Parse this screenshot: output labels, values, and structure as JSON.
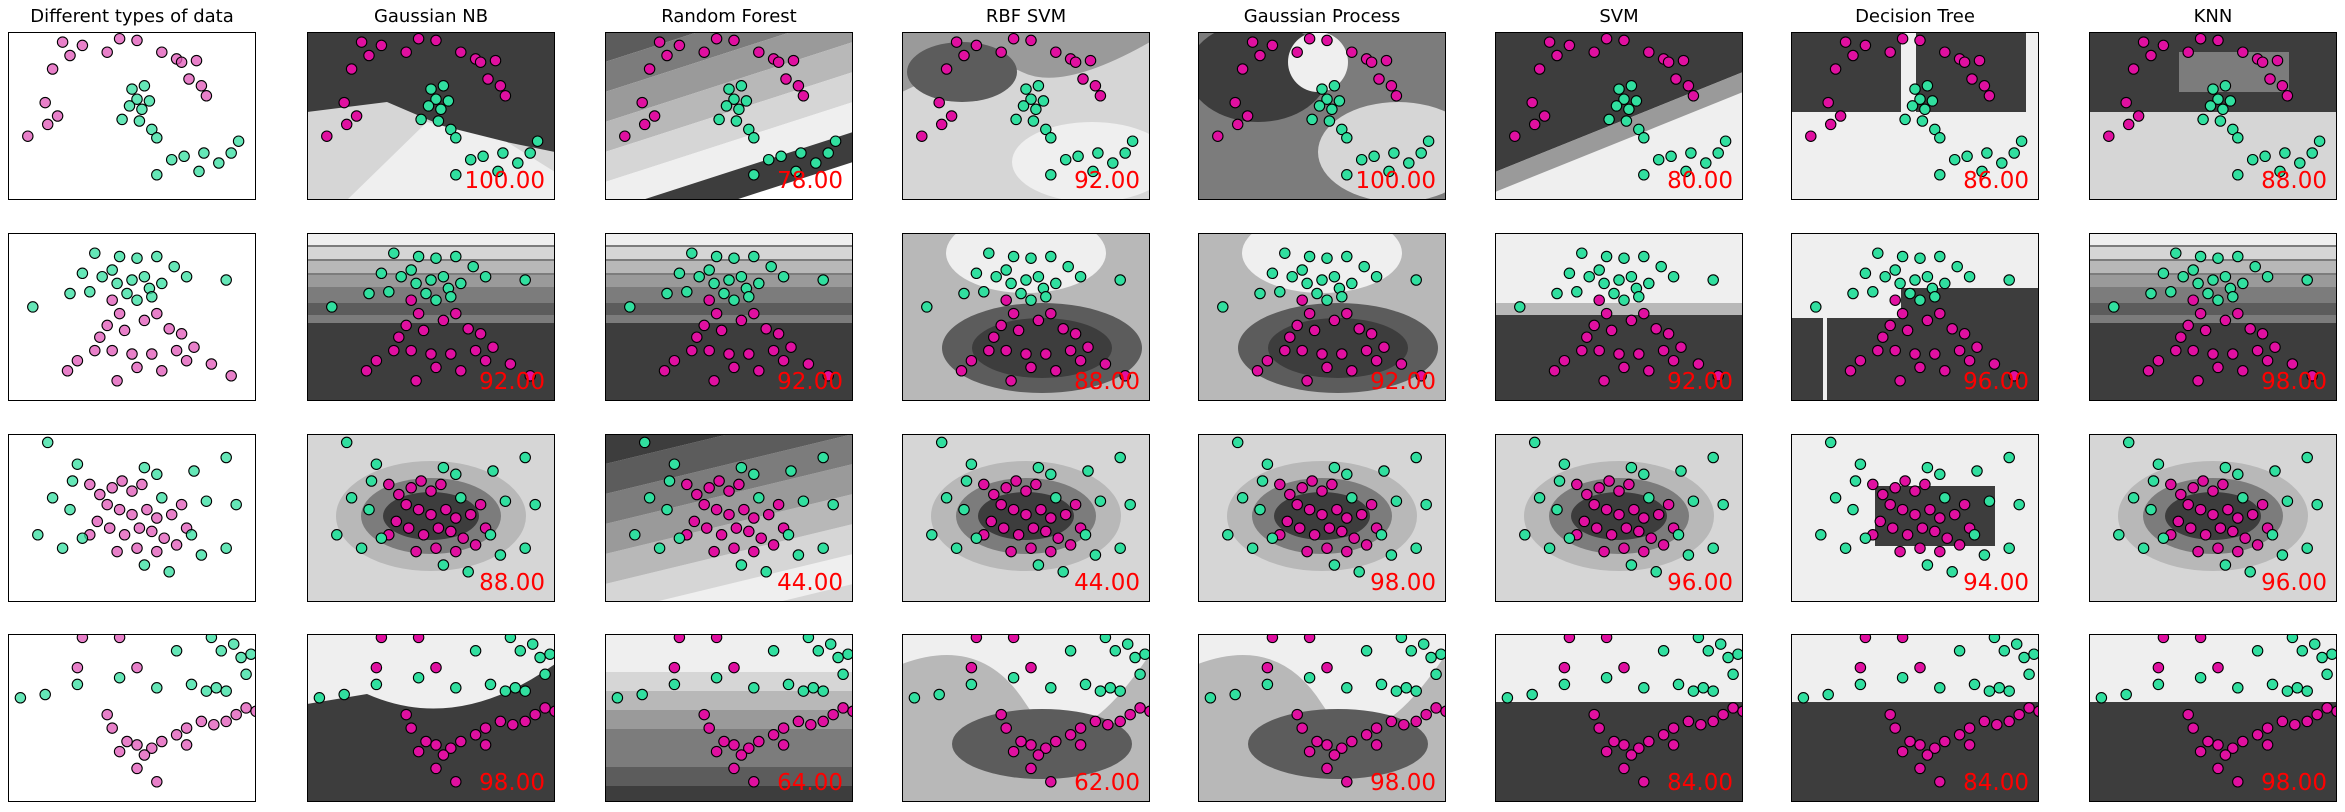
{
  "chart_data": {
    "type": "scatter",
    "title": "",
    "columns": [
      "Different types of data",
      "Gaussian NB",
      "Random Forest",
      "RBF SVM",
      "Gaussian Process",
      "SVM",
      "Decision Tree",
      "KNN"
    ],
    "rows": [
      {
        "dataset": "blobs",
        "scores": [
          "100.00",
          "78.00",
          "92.00",
          "100.00",
          "80.00",
          "86.00",
          "88.00"
        ],
        "class_colors": [
          "#e055b7",
          "#31df9f"
        ],
        "points": {
          "magenta": [
            [
              0.22,
              0.06
            ],
            [
              0.25,
              0.14
            ],
            [
              0.3,
              0.08
            ],
            [
              0.4,
              0.12
            ],
            [
              0.18,
              0.22
            ],
            [
              0.52,
              0.05
            ],
            [
              0.68,
              0.16
            ],
            [
              0.7,
              0.18
            ],
            [
              0.76,
              0.17
            ],
            [
              0.78,
              0.32
            ],
            [
              0.8,
              0.38
            ],
            [
              0.62,
              0.12
            ],
            [
              0.15,
              0.42
            ],
            [
              0.2,
              0.5
            ],
            [
              0.16,
              0.55
            ],
            [
              0.08,
              0.62
            ],
            [
              0.45,
              0.04
            ],
            [
              0.73,
              0.28
            ]
          ],
          "green": [
            [
              0.5,
              0.34
            ],
            [
              0.55,
              0.32
            ],
            [
              0.52,
              0.4
            ],
            [
              0.49,
              0.44
            ],
            [
              0.54,
              0.46
            ],
            [
              0.57,
              0.41
            ],
            [
              0.53,
              0.53
            ],
            [
              0.58,
              0.58
            ],
            [
              0.6,
              0.63
            ],
            [
              0.66,
              0.76
            ],
            [
              0.71,
              0.74
            ],
            [
              0.79,
              0.72
            ],
            [
              0.77,
              0.83
            ],
            [
              0.85,
              0.78
            ],
            [
              0.9,
              0.72
            ],
            [
              0.93,
              0.65
            ],
            [
              0.6,
              0.85
            ],
            [
              0.46,
              0.52
            ]
          ]
        }
      },
      {
        "dataset": "two_bands",
        "scores": [
          "92.00",
          "92.00",
          "88.00",
          "92.00",
          "92.00",
          "96.00",
          "98.00"
        ],
        "class_colors": [
          "#e055b7",
          "#31df9f"
        ],
        "points": {
          "magenta": [
            [
              0.42,
              0.4
            ],
            [
              0.45,
              0.48
            ],
            [
              0.4,
              0.55
            ],
            [
              0.47,
              0.58
            ],
            [
              0.55,
              0.52
            ],
            [
              0.6,
              0.48
            ],
            [
              0.65,
              0.57
            ],
            [
              0.7,
              0.6
            ],
            [
              0.75,
              0.68
            ],
            [
              0.68,
              0.7
            ],
            [
              0.58,
              0.72
            ],
            [
              0.5,
              0.72
            ],
            [
              0.42,
              0.7
            ],
            [
              0.35,
              0.7
            ],
            [
              0.28,
              0.76
            ],
            [
              0.24,
              0.82
            ],
            [
              0.44,
              0.88
            ],
            [
              0.52,
              0.8
            ],
            [
              0.62,
              0.82
            ],
            [
              0.72,
              0.76
            ],
            [
              0.82,
              0.78
            ],
            [
              0.9,
              0.85
            ],
            [
              0.37,
              0.62
            ]
          ],
          "green": [
            [
              0.35,
              0.12
            ],
            [
              0.45,
              0.14
            ],
            [
              0.52,
              0.15
            ],
            [
              0.6,
              0.14
            ],
            [
              0.3,
              0.24
            ],
            [
              0.38,
              0.26
            ],
            [
              0.44,
              0.3
            ],
            [
              0.5,
              0.28
            ],
            [
              0.55,
              0.26
            ],
            [
              0.57,
              0.33
            ],
            [
              0.48,
              0.36
            ],
            [
              0.42,
              0.22
            ],
            [
              0.67,
              0.2
            ],
            [
              0.72,
              0.26
            ],
            [
              0.88,
              0.28
            ],
            [
              0.1,
              0.44
            ],
            [
              0.25,
              0.36
            ],
            [
              0.33,
              0.35
            ],
            [
              0.62,
              0.3
            ],
            [
              0.52,
              0.4
            ],
            [
              0.58,
              0.38
            ]
          ]
        }
      },
      {
        "dataset": "circle",
        "scores": [
          "88.00",
          "44.00",
          "44.00",
          "98.00",
          "96.00",
          "94.00",
          "96.00"
        ],
        "class_colors": [
          "#e055b7",
          "#31df9f"
        ],
        "points": {
          "magenta": [
            [
              0.33,
              0.3
            ],
            [
              0.37,
              0.36
            ],
            [
              0.42,
              0.32
            ],
            [
              0.46,
              0.28
            ],
            [
              0.5,
              0.34
            ],
            [
              0.54,
              0.3
            ],
            [
              0.4,
              0.42
            ],
            [
              0.45,
              0.45
            ],
            [
              0.5,
              0.48
            ],
            [
              0.56,
              0.45
            ],
            [
              0.6,
              0.5
            ],
            [
              0.66,
              0.48
            ],
            [
              0.7,
              0.42
            ],
            [
              0.36,
              0.52
            ],
            [
              0.41,
              0.56
            ],
            [
              0.47,
              0.6
            ],
            [
              0.53,
              0.56
            ],
            [
              0.58,
              0.58
            ],
            [
              0.63,
              0.62
            ],
            [
              0.72,
              0.56
            ],
            [
              0.33,
              0.6
            ],
            [
              0.44,
              0.7
            ],
            [
              0.52,
              0.68
            ],
            [
              0.6,
              0.7
            ],
            [
              0.68,
              0.66
            ]
          ],
          "green": [
            [
              0.16,
              0.05
            ],
            [
              0.28,
              0.18
            ],
            [
              0.55,
              0.2
            ],
            [
              0.6,
              0.24
            ],
            [
              0.75,
              0.22
            ],
            [
              0.88,
              0.14
            ],
            [
              0.18,
              0.38
            ],
            [
              0.25,
              0.45
            ],
            [
              0.8,
              0.4
            ],
            [
              0.92,
              0.42
            ],
            [
              0.3,
              0.62
            ],
            [
              0.12,
              0.6
            ],
            [
              0.22,
              0.68
            ],
            [
              0.74,
              0.6
            ],
            [
              0.78,
              0.72
            ],
            [
              0.55,
              0.78
            ],
            [
              0.65,
              0.82
            ],
            [
              0.88,
              0.68
            ],
            [
              0.26,
              0.28
            ],
            [
              0.62,
              0.38
            ]
          ]
        }
      },
      {
        "dataset": "moons",
        "scores": [
          "98.00",
          "64.00",
          "62.00",
          "98.00",
          "84.00",
          "84.00",
          "98.00"
        ],
        "class_colors": [
          "#e055b7",
          "#31df9f"
        ],
        "points": {
          "magenta": [
            [
              0.3,
              0.02
            ],
            [
              0.45,
              0.02
            ],
            [
              0.28,
              0.2
            ],
            [
              0.52,
              0.2
            ],
            [
              0.4,
              0.48
            ],
            [
              0.42,
              0.56
            ],
            [
              0.48,
              0.64
            ],
            [
              0.52,
              0.66
            ],
            [
              0.58,
              0.68
            ],
            [
              0.62,
              0.64
            ],
            [
              0.68,
              0.6
            ],
            [
              0.72,
              0.56
            ],
            [
              0.78,
              0.52
            ],
            [
              0.83,
              0.54
            ],
            [
              0.88,
              0.52
            ],
            [
              0.92,
              0.48
            ],
            [
              0.96,
              0.44
            ],
            [
              1.0,
              0.46
            ],
            [
              0.45,
              0.7
            ],
            [
              0.55,
              0.72
            ],
            [
              0.72,
              0.66
            ],
            [
              0.6,
              0.88
            ],
            [
              0.52,
              0.8
            ]
          ],
          "green": [
            [
              0.05,
              0.38
            ],
            [
              0.15,
              0.36
            ],
            [
              0.28,
              0.3
            ],
            [
              0.45,
              0.26
            ],
            [
              0.6,
              0.32
            ],
            [
              0.68,
              0.1
            ],
            [
              0.82,
              0.02
            ],
            [
              0.86,
              0.1
            ],
            [
              0.91,
              0.06
            ],
            [
              0.94,
              0.14
            ],
            [
              0.98,
              0.12
            ],
            [
              0.8,
              0.34
            ],
            [
              0.84,
              0.32
            ],
            [
              0.88,
              0.34
            ],
            [
              0.74,
              0.3
            ],
            [
              0.96,
              0.24
            ]
          ]
        }
      }
    ],
    "grid": false,
    "legend": "none"
  }
}
